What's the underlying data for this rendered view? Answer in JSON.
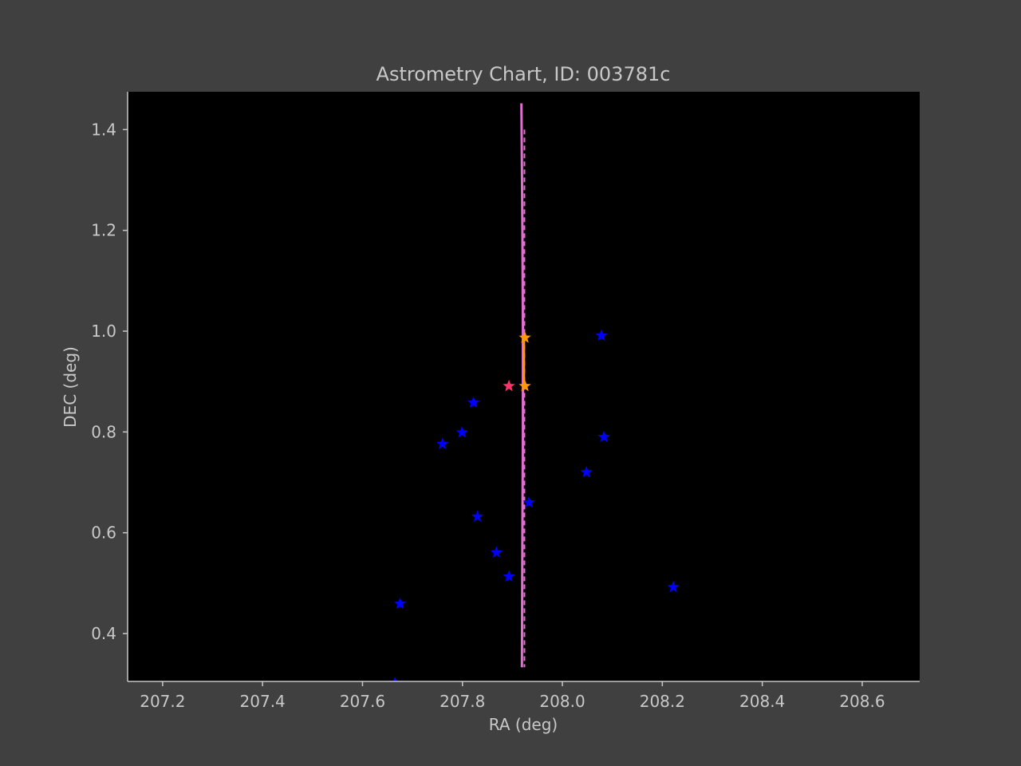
{
  "chart_data": {
    "type": "scatter",
    "title": "Astrometry Chart, ID: 003781c",
    "xlabel": "RA (deg)",
    "ylabel": "DEC (deg)",
    "xlim": [
      207.13,
      208.715
    ],
    "ylim": [
      0.305,
      1.475
    ],
    "xticks": [
      207.2,
      207.4,
      207.6,
      207.8,
      208.0,
      208.2,
      208.4,
      208.6
    ],
    "yticks": [
      0.4,
      0.6,
      0.8,
      1.0,
      1.2,
      1.4
    ],
    "xtick_labels": [
      "207.2",
      "207.4",
      "207.6",
      "207.8",
      "208.0",
      "208.2",
      "208.4",
      "208.6"
    ],
    "ytick_labels": [
      "0.4",
      "0.6",
      "0.8",
      "1.0",
      "1.2",
      "1.4"
    ],
    "grid": false,
    "colors": {
      "figure_bg": "#404040",
      "plot_bg": "#000000",
      "axis": "#c8c8c8",
      "stars": "#0000ff",
      "target": "#ff3366",
      "observations": "#ff9900",
      "track": "#e070d0"
    },
    "series": [
      {
        "marker": "star",
        "color": "#0000ff",
        "points": [
          [
            208.078,
            0.991
          ],
          [
            207.822,
            0.858
          ],
          [
            207.799,
            0.799
          ],
          [
            207.76,
            0.776
          ],
          [
            208.083,
            0.79
          ],
          [
            208.048,
            0.72
          ],
          [
            207.933,
            0.66
          ],
          [
            207.83,
            0.632
          ],
          [
            207.868,
            0.561
          ],
          [
            207.893,
            0.513
          ],
          [
            208.222,
            0.492
          ],
          [
            207.675,
            0.459
          ],
          [
            207.665,
            0.302
          ]
        ]
      },
      {
        "marker": "star",
        "color": "#ff3366",
        "points": [
          [
            207.893,
            0.891
          ]
        ]
      },
      {
        "marker": "star",
        "color": "#ff9900",
        "points": [
          [
            207.925,
            0.987
          ],
          [
            207.925,
            0.891
          ]
        ]
      },
      {
        "type": "line",
        "color": "#e070d0",
        "points": [
          [
            207.918,
            1.452
          ],
          [
            207.92,
            1.2
          ],
          [
            207.921,
            1.0
          ],
          [
            207.921,
            0.8
          ],
          [
            207.92,
            0.6
          ],
          [
            207.919,
            0.333
          ]
        ]
      },
      {
        "type": "dashed-line",
        "color": "#e070d0",
        "points": [
          [
            207.924,
            1.4
          ],
          [
            207.924,
            0.333
          ]
        ]
      },
      {
        "type": "line",
        "color": "#ff9900",
        "points": [
          [
            207.923,
            0.987
          ],
          [
            207.923,
            0.891
          ]
        ]
      }
    ]
  }
}
